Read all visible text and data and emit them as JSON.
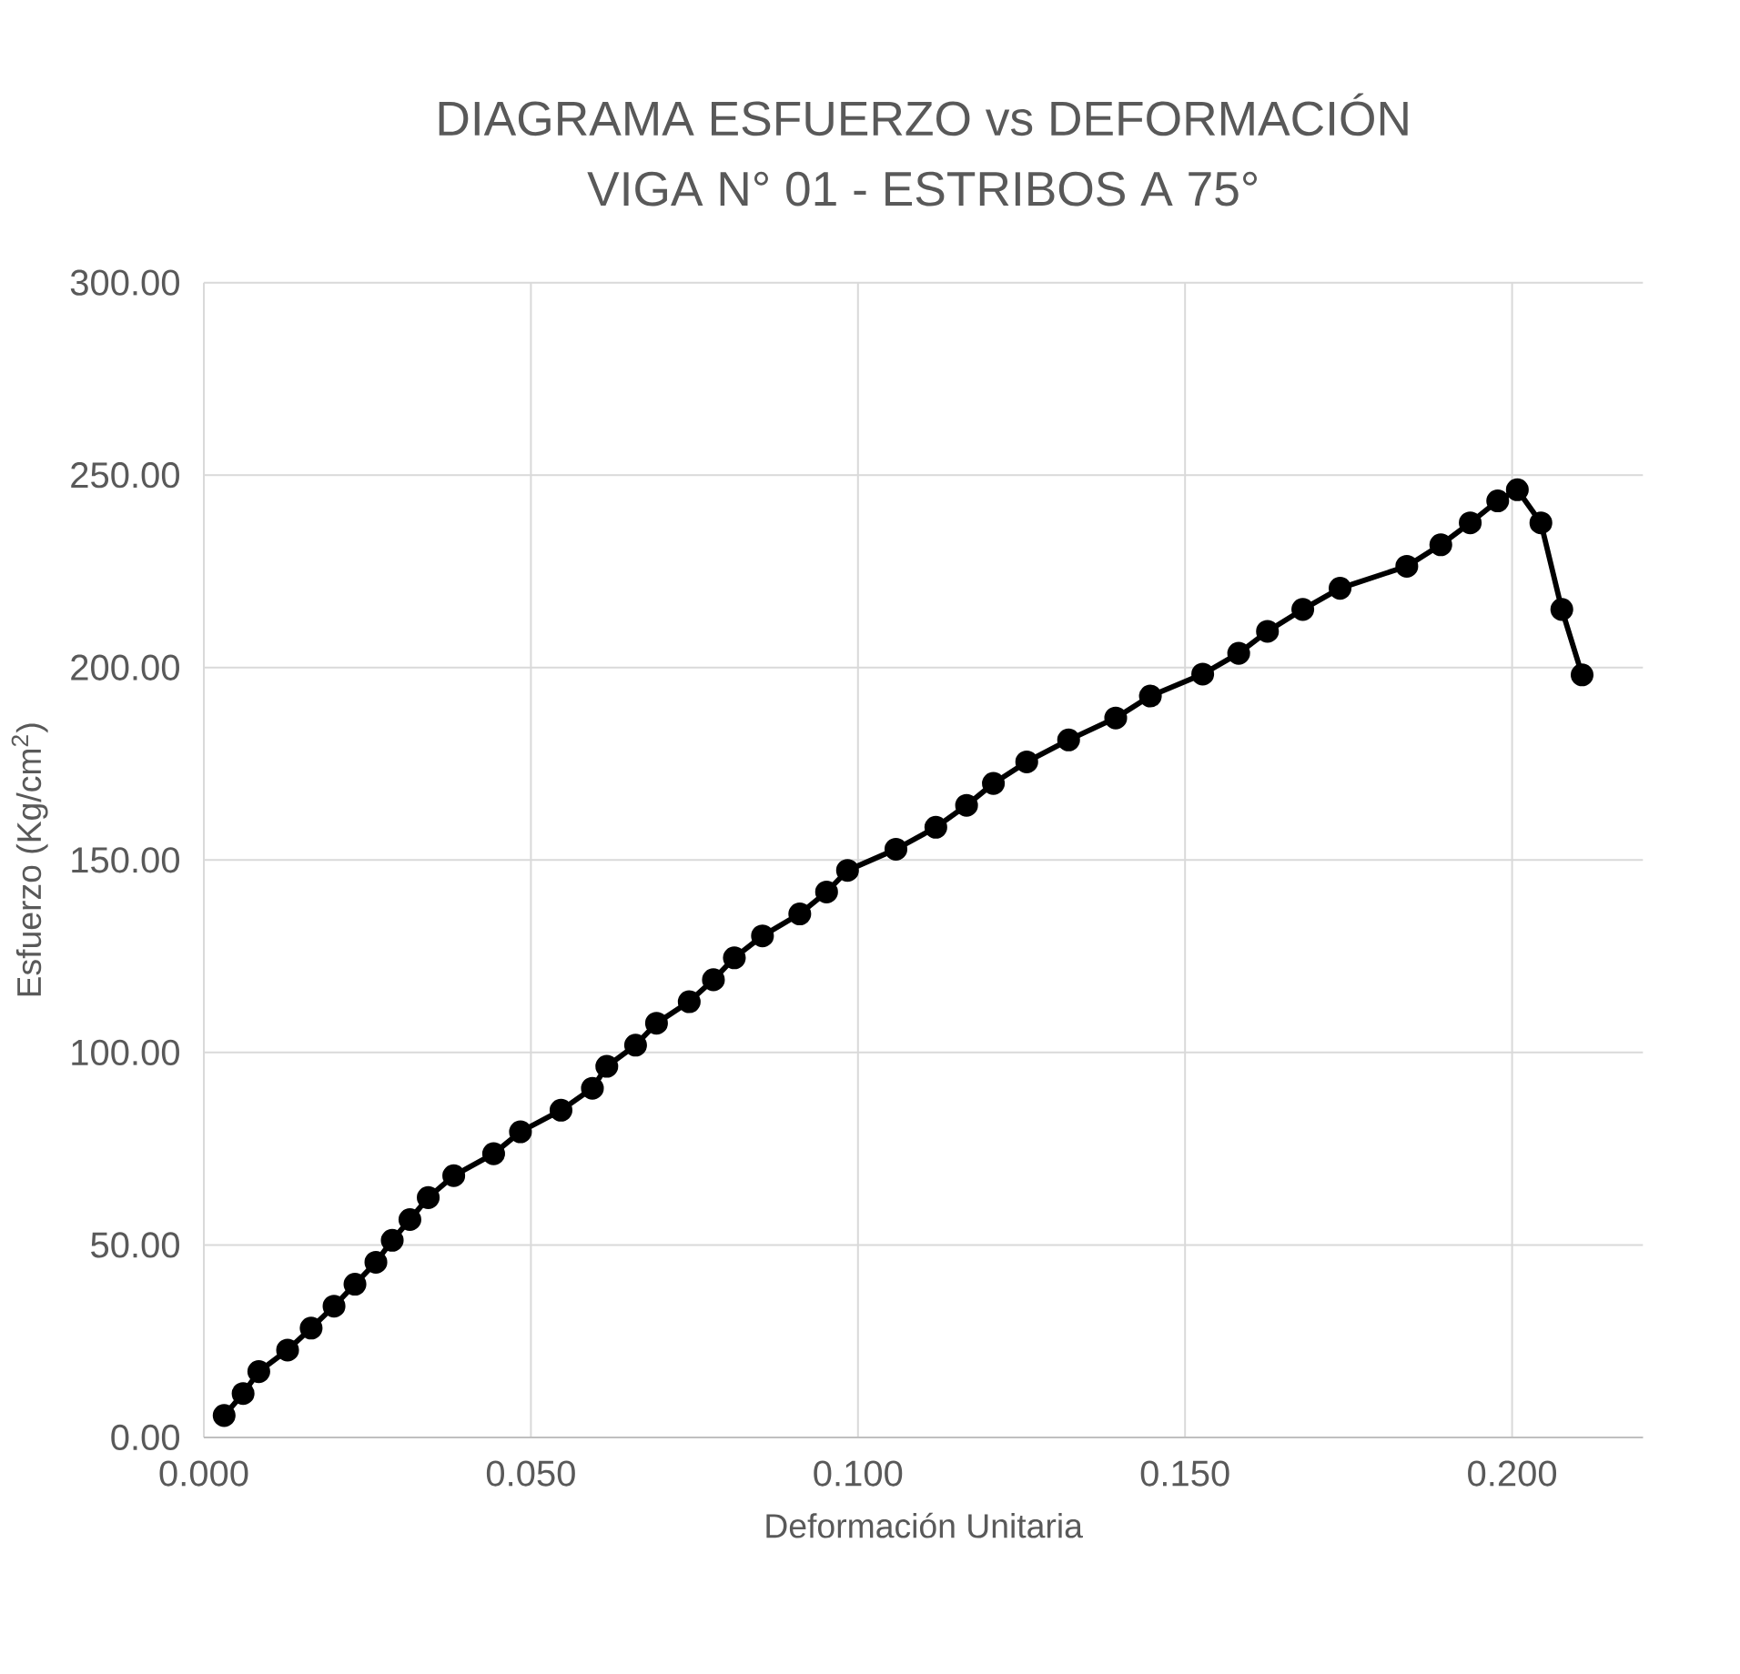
{
  "chart_data": {
    "type": "line",
    "title": "DIAGRAMA ESFUERZO vs DEFORMACIÓN",
    "subtitle": "VIGA N° 01 - ESTRIBOS A 75°",
    "xlabel": "Deformación Unitaria",
    "ylabel": "Esfuerzo (Kg/cm$^{2}$)",
    "xlim": [
      0,
      0.22
    ],
    "ylim": [
      0,
      300
    ],
    "xticks": [
      {
        "value": 0,
        "label": "0.000"
      },
      {
        "value": 0.05,
        "label": "0.050"
      },
      {
        "value": 0.1,
        "label": "0.100"
      },
      {
        "value": 0.15,
        "label": "0.150"
      },
      {
        "value": 0.2,
        "label": "0.200"
      }
    ],
    "yticks": [
      {
        "value": 0,
        "label": "0.00"
      },
      {
        "value": 50,
        "label": "50.00"
      },
      {
        "value": 100,
        "label": "100.00"
      },
      {
        "value": 150,
        "label": "150.00"
      },
      {
        "value": 200,
        "label": "200.00"
      },
      {
        "value": 250,
        "label": "250.00"
      },
      {
        "value": 300,
        "label": "300.00"
      }
    ],
    "grid": true,
    "marker": "circle",
    "line_style": "solid",
    "x": [
      0.0031,
      0.006,
      0.0084,
      0.0128,
      0.0164,
      0.0199,
      0.0231,
      0.0263,
      0.0288,
      0.0315,
      0.0343,
      0.0382,
      0.0443,
      0.0484,
      0.0546,
      0.0594,
      0.0616,
      0.066,
      0.0692,
      0.0742,
      0.0779,
      0.0811,
      0.0854,
      0.0911,
      0.0952,
      0.0984,
      0.1058,
      0.1119,
      0.1166,
      0.1207,
      0.1258,
      0.1322,
      0.1394,
      0.1447,
      0.1527,
      0.1582,
      0.1626,
      0.168,
      0.1737,
      0.1839,
      0.1891,
      0.1936,
      0.1978,
      0.2008,
      0.2044,
      0.2076,
      0.2107
    ],
    "series": [
      {
        "color": "#000000",
        "values": [
          5.7,
          11.4,
          17.1,
          22.7,
          28.4,
          34.1,
          39.8,
          45.5,
          51.2,
          56.6,
          62.3,
          68.0,
          73.7,
          79.4,
          85.0,
          90.7,
          96.4,
          101.9,
          107.6,
          113.2,
          118.9,
          124.6,
          130.3,
          136.0,
          141.7,
          147.3,
          152.8,
          158.5,
          164.2,
          169.9,
          175.5,
          181.2,
          186.9,
          192.6,
          198.3,
          203.7,
          209.4,
          215.1,
          220.6,
          226.3,
          231.9,
          237.6,
          243.3,
          246.2,
          237.6,
          215.1,
          198.1
        ]
      }
    ]
  }
}
